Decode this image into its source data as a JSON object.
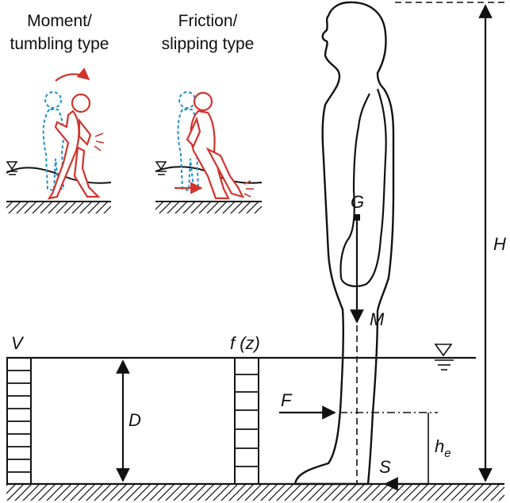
{
  "panels": {
    "moment": {
      "line1": "Moment/",
      "line2": "tumbling type"
    },
    "friction": {
      "line1": "Friction/",
      "line2": "slipping type"
    }
  },
  "labels": {
    "V": "V",
    "fz": "f (z)",
    "D": "D",
    "F": "F",
    "G": "G",
    "M": "M",
    "H": "H",
    "S": "S",
    "he_main": "h",
    "he_sub": "e"
  },
  "colors": {
    "line": "#111111",
    "person_red": "#d0342c",
    "person_blue": "#1f8fc9"
  },
  "icons": [
    "water-level-icon",
    "ground-hatch-icon"
  ]
}
